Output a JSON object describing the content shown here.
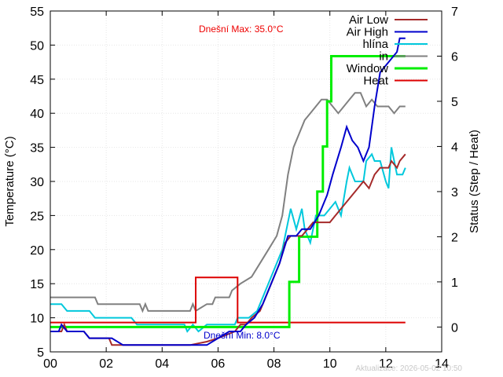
{
  "chart_data": {
    "type": "line",
    "xlabel": "",
    "ylabel": "Temperature (°C)",
    "y2label": "Status (Step / Heat)",
    "xlim": [
      0,
      14
    ],
    "ylim": [
      5,
      55
    ],
    "y2lim": [
      -0.55,
      7
    ],
    "x_ticks": [
      0,
      2,
      4,
      6,
      8,
      10,
      12,
      14
    ],
    "x_tick_labels": [
      "00",
      "02",
      "04",
      "06",
      "08",
      "10",
      "12",
      "14"
    ],
    "y_ticks": [
      5,
      10,
      15,
      20,
      25,
      30,
      35,
      40,
      45,
      50,
      55
    ],
    "y2_ticks": [
      0,
      1,
      2,
      3,
      4,
      5,
      6,
      7
    ],
    "grid": true,
    "legend_position": "top-right",
    "annotations": {
      "max": "Dnešní Max: 35.0°C",
      "min": "Dnešní Min: 8.0°C",
      "updated": "Aktualizace: 2026-05-02 10:50"
    },
    "series": [
      {
        "name": "Air Low",
        "axis": "y",
        "color": "#a52a2a",
        "points": [
          [
            0,
            8
          ],
          [
            0.4,
            8
          ],
          [
            0.5,
            9
          ],
          [
            0.6,
            8
          ],
          [
            1.2,
            8
          ],
          [
            1.4,
            7
          ],
          [
            2.1,
            7
          ],
          [
            2.2,
            6
          ],
          [
            2.8,
            6
          ],
          [
            3.2,
            6
          ],
          [
            5,
            6
          ],
          [
            5.6,
            6.5
          ],
          [
            6,
            7
          ],
          [
            6.3,
            7.5
          ],
          [
            6.6,
            8
          ],
          [
            6.8,
            9
          ],
          [
            7,
            9
          ],
          [
            7.2,
            10
          ],
          [
            7.5,
            11
          ],
          [
            7.8,
            14
          ],
          [
            8,
            16
          ],
          [
            8.2,
            18
          ],
          [
            8.4,
            21
          ],
          [
            8.6,
            22
          ],
          [
            8.8,
            22
          ],
          [
            9,
            22
          ],
          [
            9.2,
            23
          ],
          [
            9.4,
            24
          ],
          [
            9.6,
            24
          ],
          [
            10,
            24
          ],
          [
            10.2,
            25
          ],
          [
            10.4,
            26
          ],
          [
            10.6,
            27
          ],
          [
            10.8,
            28
          ],
          [
            11,
            29
          ],
          [
            11.2,
            30
          ],
          [
            11.4,
            29
          ],
          [
            11.6,
            31
          ],
          [
            11.8,
            32
          ],
          [
            12.1,
            32
          ],
          [
            12.2,
            33
          ],
          [
            12.4,
            32
          ],
          [
            12.5,
            33
          ],
          [
            12.7,
            34
          ]
        ]
      },
      {
        "name": "Air High",
        "axis": "y",
        "color": "#0000cc",
        "points": [
          [
            0,
            8
          ],
          [
            0.3,
            8
          ],
          [
            0.4,
            9
          ],
          [
            0.6,
            8
          ],
          [
            1.2,
            8
          ],
          [
            1.4,
            7
          ],
          [
            2.2,
            7
          ],
          [
            2.6,
            6
          ],
          [
            3.5,
            6
          ],
          [
            5,
            6
          ],
          [
            5.6,
            6
          ],
          [
            6,
            7
          ],
          [
            6.4,
            8
          ],
          [
            6.8,
            8
          ],
          [
            7,
            9
          ],
          [
            7.3,
            10
          ],
          [
            7.6,
            12
          ],
          [
            7.9,
            15
          ],
          [
            8.2,
            18
          ],
          [
            8.5,
            22
          ],
          [
            8.8,
            22
          ],
          [
            9,
            23
          ],
          [
            9.3,
            23
          ],
          [
            9.6,
            25
          ],
          [
            9.9,
            28
          ],
          [
            10.1,
            31
          ],
          [
            10.4,
            35
          ],
          [
            10.6,
            38
          ],
          [
            10.8,
            36
          ],
          [
            11,
            35
          ],
          [
            11.2,
            33
          ],
          [
            11.4,
            35
          ],
          [
            11.6,
            41
          ],
          [
            11.8,
            46
          ],
          [
            12,
            47
          ],
          [
            12.2,
            48
          ],
          [
            12.4,
            49
          ],
          [
            12.5,
            51
          ],
          [
            12.7,
            51
          ]
        ]
      },
      {
        "name": "hlína",
        "axis": "y",
        "color": "#00c8dc",
        "points": [
          [
            0,
            12
          ],
          [
            0.4,
            12
          ],
          [
            0.6,
            11
          ],
          [
            1.4,
            11
          ],
          [
            1.6,
            10
          ],
          [
            2.9,
            10
          ],
          [
            3.1,
            9
          ],
          [
            4.6,
            9
          ],
          [
            4.8,
            9
          ],
          [
            4.9,
            8
          ],
          [
            5.1,
            9
          ],
          [
            5.3,
            8
          ],
          [
            5.6,
            9
          ],
          [
            6.6,
            9
          ],
          [
            6.7,
            10
          ],
          [
            7.1,
            10
          ],
          [
            7.4,
            11
          ],
          [
            7.7,
            14
          ],
          [
            8,
            17
          ],
          [
            8.3,
            20
          ],
          [
            8.4,
            22
          ],
          [
            8.6,
            26
          ],
          [
            8.8,
            23
          ],
          [
            9,
            26
          ],
          [
            9.1,
            23
          ],
          [
            9.3,
            21
          ],
          [
            9.5,
            25
          ],
          [
            9.8,
            25
          ],
          [
            10,
            26
          ],
          [
            10.2,
            27
          ],
          [
            10.4,
            25
          ],
          [
            10.6,
            30
          ],
          [
            10.7,
            32
          ],
          [
            10.9,
            30
          ],
          [
            11.2,
            30
          ],
          [
            11.3,
            33
          ],
          [
            11.5,
            34
          ],
          [
            11.6,
            33
          ],
          [
            11.8,
            33
          ],
          [
            12,
            30
          ],
          [
            12.1,
            29
          ],
          [
            12.2,
            35
          ],
          [
            12.4,
            31
          ],
          [
            12.6,
            31
          ],
          [
            12.7,
            32
          ]
        ]
      },
      {
        "name": "in",
        "axis": "y",
        "color": "#808080",
        "points": [
          [
            0,
            13
          ],
          [
            1.6,
            13
          ],
          [
            1.7,
            12
          ],
          [
            3.2,
            12
          ],
          [
            3.3,
            11
          ],
          [
            3.4,
            12
          ],
          [
            3.5,
            11
          ],
          [
            4,
            11
          ],
          [
            4.6,
            11
          ],
          [
            5,
            11
          ],
          [
            5.1,
            12
          ],
          [
            5.2,
            11
          ],
          [
            5.6,
            12
          ],
          [
            5.8,
            12
          ],
          [
            5.9,
            13
          ],
          [
            6.4,
            13
          ],
          [
            6.5,
            14
          ],
          [
            6.8,
            15
          ],
          [
            7.2,
            16
          ],
          [
            7.5,
            18
          ],
          [
            7.8,
            20
          ],
          [
            8.1,
            22
          ],
          [
            8.3,
            25
          ],
          [
            8.5,
            31
          ],
          [
            8.7,
            35
          ],
          [
            8.9,
            37
          ],
          [
            9.1,
            39
          ],
          [
            9.3,
            40
          ],
          [
            9.5,
            41
          ],
          [
            9.7,
            42
          ],
          [
            9.9,
            42
          ],
          [
            10.1,
            41
          ],
          [
            10.3,
            40
          ],
          [
            10.5,
            41
          ],
          [
            10.7,
            42
          ],
          [
            10.9,
            43
          ],
          [
            11.1,
            43
          ],
          [
            11.3,
            41
          ],
          [
            11.5,
            42
          ],
          [
            11.7,
            41
          ],
          [
            12.1,
            41
          ],
          [
            12.3,
            40
          ],
          [
            12.5,
            41
          ],
          [
            12.7,
            41
          ]
        ]
      },
      {
        "name": "Window",
        "axis": "y2",
        "color": "#00ee00",
        "step": true,
        "points": [
          [
            0,
            0
          ],
          [
            8.55,
            0
          ],
          [
            8.55,
            1
          ],
          [
            8.9,
            1
          ],
          [
            8.9,
            2
          ],
          [
            9.55,
            2
          ],
          [
            9.55,
            3
          ],
          [
            9.75,
            3
          ],
          [
            9.75,
            4
          ],
          [
            9.9,
            4
          ],
          [
            9.9,
            5
          ],
          [
            10.05,
            5
          ],
          [
            10.05,
            6
          ],
          [
            12.7,
            6
          ]
        ]
      },
      {
        "name": "Heat",
        "axis": "y2",
        "color": "#dd0000",
        "step": true,
        "points": [
          [
            0,
            0.1
          ],
          [
            5.2,
            0.1
          ],
          [
            5.2,
            1.1
          ],
          [
            6.7,
            1.1
          ],
          [
            6.7,
            0.1
          ],
          [
            12.7,
            0.1
          ]
        ]
      }
    ]
  }
}
